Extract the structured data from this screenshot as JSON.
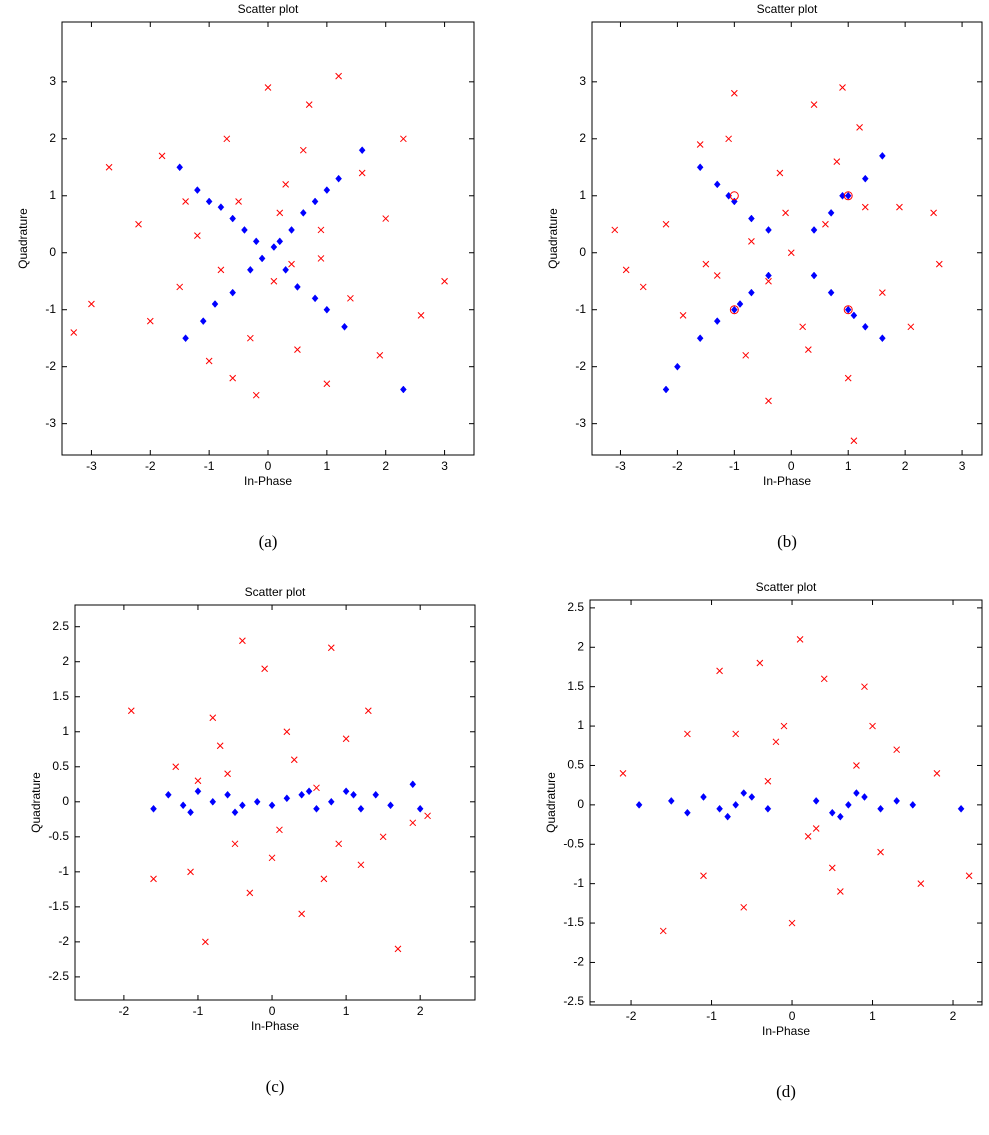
{
  "chart_data": [
    {
      "type": "scatter",
      "title": "Scatter plot",
      "x_label": "In-Phase",
      "y_label": "Quadrature",
      "caption": "(a)",
      "xlim": [
        -3.5,
        3.5
      ],
      "ylim": [
        -3.55,
        4.05
      ],
      "xticks": [
        -3,
        -2,
        -1,
        0,
        1,
        2,
        3
      ],
      "yticks": [
        -3,
        -2,
        -1,
        0,
        1,
        2,
        3
      ],
      "series": [
        {
          "color": "#ff0000",
          "marker": "x",
          "x": [
            -3.3,
            -3.0,
            -2.7,
            -2.2,
            -2.0,
            -1.8,
            -1.5,
            -1.2,
            -1.0,
            -0.7,
            -0.5,
            -0.3,
            0.0,
            0.1,
            0.3,
            0.5,
            0.7,
            0.9,
            1.2,
            1.4,
            1.6,
            1.9,
            2.3,
            2.6,
            3.0,
            -0.2,
            0.4,
            -0.8,
            0.6,
            0.2,
            -1.4,
            1.0,
            -0.6,
            2.0,
            0.9
          ],
          "y": [
            -1.4,
            -0.9,
            1.5,
            0.5,
            -1.2,
            1.7,
            -0.6,
            0.3,
            -1.9,
            2.0,
            0.9,
            -1.5,
            2.9,
            -0.5,
            1.2,
            -1.7,
            2.6,
            0.4,
            3.1,
            -0.8,
            1.4,
            -1.8,
            2.0,
            -1.1,
            -0.5,
            -2.5,
            -0.2,
            -0.3,
            1.8,
            0.7,
            0.9,
            -2.3,
            -2.2,
            0.6,
            -0.1
          ]
        },
        {
          "color": "#0000ff",
          "marker": "diamond",
          "x": [
            -1.5,
            -1.2,
            -1.0,
            -0.8,
            -0.6,
            -0.4,
            -0.2,
            0.2,
            0.4,
            0.6,
            0.8,
            1.0,
            1.2,
            1.6,
            -1.4,
            -1.1,
            -0.9,
            -0.6,
            -0.3,
            0.3,
            0.5,
            0.8,
            1.0,
            1.3,
            2.3,
            0.1,
            -0.1
          ],
          "y": [
            1.5,
            1.1,
            0.9,
            0.8,
            0.6,
            0.4,
            0.2,
            0.2,
            0.4,
            0.7,
            0.9,
            1.1,
            1.3,
            1.8,
            -1.5,
            -1.2,
            -0.9,
            -0.7,
            -0.3,
            -0.3,
            -0.6,
            -0.8,
            -1.0,
            -1.3,
            -2.4,
            0.1,
            -0.1
          ]
        }
      ]
    },
    {
      "type": "scatter",
      "title": "Scatter plot",
      "x_label": "In-Phase",
      "y_label": "Quadrature",
      "caption": "(b)",
      "xlim": [
        -3.5,
        3.35
      ],
      "ylim": [
        -3.55,
        4.05
      ],
      "xticks": [
        -3,
        -2,
        -1,
        0,
        1,
        2,
        3
      ],
      "yticks": [
        -3,
        -2,
        -1,
        0,
        1,
        2,
        3
      ],
      "series": [
        {
          "color": "#ff0000",
          "marker": "x",
          "x": [
            -3.1,
            -2.9,
            -2.6,
            -2.2,
            -1.9,
            -1.6,
            -1.3,
            -1.0,
            -0.7,
            -0.4,
            -0.2,
            0.0,
            0.2,
            0.4,
            0.6,
            0.9,
            1.1,
            1.3,
            1.6,
            1.9,
            2.1,
            2.5,
            2.6,
            -0.8,
            0.8,
            -0.4,
            1.2,
            -1.5,
            0.3,
            -0.1,
            1.0,
            -1.1
          ],
          "y": [
            0.4,
            -0.3,
            -0.6,
            0.5,
            -1.1,
            1.9,
            -0.4,
            2.8,
            0.2,
            -2.6,
            1.4,
            0.0,
            -1.3,
            2.6,
            0.5,
            2.9,
            -3.3,
            0.8,
            -0.7,
            0.8,
            -1.3,
            0.7,
            -0.2,
            -1.8,
            1.6,
            -0.5,
            2.2,
            -0.2,
            -1.7,
            0.7,
            -2.2,
            2.0
          ]
        },
        {
          "color": "#0000ff",
          "marker": "diamond",
          "x": [
            -1.6,
            -1.3,
            -1.0,
            -0.7,
            -0.4,
            0.4,
            0.7,
            1.0,
            1.3,
            1.6,
            -1.6,
            -1.3,
            -1.0,
            -0.7,
            -0.4,
            0.4,
            0.7,
            1.0,
            1.3,
            1.6,
            -2.2,
            -2.0,
            -1.1,
            1.1,
            0.9,
            -0.9
          ],
          "y": [
            1.5,
            1.2,
            0.9,
            0.6,
            0.4,
            0.4,
            0.7,
            1.0,
            1.3,
            1.7,
            -1.5,
            -1.2,
            -1.0,
            -0.7,
            -0.4,
            -0.4,
            -0.7,
            -1.0,
            -1.3,
            -1.5,
            -2.4,
            -2.0,
            1.0,
            -1.1,
            1.0,
            -0.9
          ]
        },
        {
          "color": "#ff0000",
          "marker": "circle",
          "x": [
            -1,
            1,
            -1,
            1
          ],
          "y": [
            1,
            1,
            -1,
            -1
          ]
        }
      ]
    },
    {
      "type": "scatter",
      "title": "Scatter plot",
      "x_label": "In-Phase",
      "y_label": "Quadrature",
      "caption": "(c)",
      "xlim": [
        -2.66,
        2.74
      ],
      "ylim": [
        -2.83,
        2.81
      ],
      "xticks": [
        -2,
        -1,
        0,
        1,
        2
      ],
      "yticks": [
        -2.5,
        -2,
        -1.5,
        -1,
        -0.5,
        0,
        0.5,
        1,
        1.5,
        2,
        2.5
      ],
      "series": [
        {
          "color": "#ff0000",
          "marker": "x",
          "x": [
            -1.9,
            -1.6,
            -1.3,
            -1.1,
            -0.9,
            -0.8,
            -0.6,
            -0.4,
            -0.3,
            -0.1,
            0.0,
            0.2,
            0.4,
            0.6,
            0.8,
            0.9,
            1.0,
            1.3,
            1.5,
            1.7,
            1.9,
            2.1,
            -0.5,
            0.3,
            -0.7,
            0.1,
            0.7,
            -1.0,
            1.2
          ],
          "y": [
            1.3,
            -1.1,
            0.5,
            -1.0,
            -2.0,
            1.2,
            0.4,
            2.3,
            -1.3,
            1.9,
            -0.8,
            1.0,
            -1.6,
            0.2,
            2.2,
            -0.6,
            0.9,
            1.3,
            -0.5,
            -2.1,
            -0.3,
            -0.2,
            -0.6,
            0.6,
            0.8,
            -0.4,
            -1.1,
            0.3,
            -0.9
          ]
        },
        {
          "color": "#0000ff",
          "marker": "diamond",
          "x": [
            -1.6,
            -1.4,
            -1.2,
            -1.0,
            -0.8,
            -0.6,
            -0.4,
            -0.2,
            0.0,
            0.2,
            0.4,
            0.6,
            0.8,
            1.0,
            1.2,
            1.4,
            1.6,
            1.9,
            2.0,
            -0.5,
            0.5,
            -1.1,
            1.1
          ],
          "y": [
            -0.1,
            0.1,
            -0.05,
            0.15,
            0.0,
            0.1,
            -0.05,
            0.0,
            -0.05,
            0.05,
            0.1,
            -0.1,
            0.0,
            0.15,
            -0.1,
            0.1,
            -0.05,
            0.25,
            -0.1,
            -0.15,
            0.15,
            -0.15,
            0.1
          ]
        }
      ]
    },
    {
      "type": "scatter",
      "title": "Scatter plot",
      "x_label": "In-Phase",
      "y_label": "Quadrature",
      "caption": "(d)",
      "xlim": [
        -2.51,
        2.36
      ],
      "ylim": [
        -2.54,
        2.6
      ],
      "xticks": [
        -2,
        -1,
        0,
        1,
        2
      ],
      "yticks": [
        -2.5,
        -2,
        -1.5,
        -1,
        -0.5,
        0,
        0.5,
        1,
        1.5,
        2,
        2.5
      ],
      "series": [
        {
          "color": "#ff0000",
          "marker": "x",
          "x": [
            -2.1,
            -1.6,
            -1.3,
            -1.1,
            -0.9,
            -0.6,
            -0.4,
            -0.2,
            0.0,
            0.1,
            0.2,
            0.4,
            0.6,
            0.8,
            0.9,
            1.1,
            1.3,
            1.6,
            1.8,
            2.2,
            -0.3,
            0.3,
            -0.1,
            0.5,
            -0.7,
            1.0
          ],
          "y": [
            0.4,
            -1.6,
            0.9,
            -0.9,
            1.7,
            -1.3,
            1.8,
            0.8,
            -1.5,
            2.1,
            -0.4,
            1.6,
            -1.1,
            0.5,
            1.5,
            -0.6,
            0.7,
            -1.0,
            0.4,
            -0.9,
            0.3,
            -0.3,
            1.0,
            -0.8,
            0.9,
            1.0
          ]
        },
        {
          "color": "#0000ff",
          "marker": "diamond",
          "x": [
            -1.9,
            -1.5,
            -1.3,
            -1.1,
            -0.9,
            -0.7,
            -0.5,
            -0.3,
            0.3,
            0.5,
            0.7,
            0.9,
            1.1,
            1.3,
            1.5,
            2.1,
            -0.8,
            -0.6,
            0.6,
            0.8
          ],
          "y": [
            0.0,
            0.05,
            -0.1,
            0.1,
            -0.05,
            0.0,
            0.1,
            -0.05,
            0.05,
            -0.1,
            0.0,
            0.1,
            -0.05,
            0.05,
            0.0,
            -0.05,
            -0.15,
            0.15,
            -0.15,
            0.15
          ]
        }
      ]
    }
  ]
}
